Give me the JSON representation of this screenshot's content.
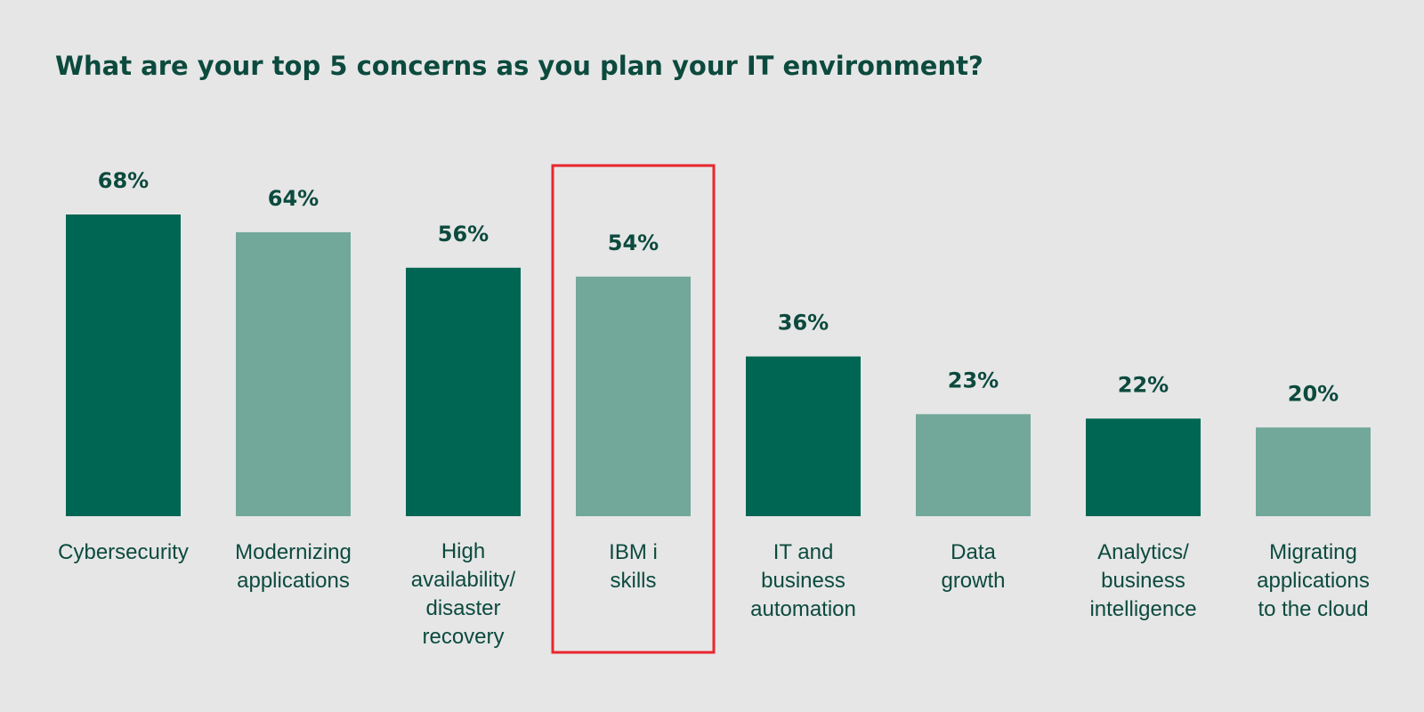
{
  "chart_data": {
    "type": "bar",
    "title": "What are your top 5 concerns as you plan your IT environment?",
    "xlabel": "",
    "ylabel": "",
    "ylim": [
      0,
      68
    ],
    "grid": false,
    "categories": [
      "Cybersecurity",
      "Modernizing applications",
      "High availability/ disaster recovery",
      "IBM i skills",
      "IT and business automation",
      "Data growth",
      "Analytics/ business intelligence",
      "Migrating applications to the cloud"
    ],
    "category_lines": [
      [
        "Cybersecurity"
      ],
      [
        "Modernizing",
        "applications"
      ],
      [
        "High",
        "availability/",
        "disaster",
        "recovery"
      ],
      [
        "IBM i",
        "skills"
      ],
      [
        "IT and",
        "business",
        "automation"
      ],
      [
        "Data",
        "growth"
      ],
      [
        "Analytics/",
        "business",
        "intelligence"
      ],
      [
        "Migrating",
        "applications",
        "to the cloud"
      ]
    ],
    "values": [
      68,
      64,
      56,
      54,
      36,
      23,
      22,
      20
    ],
    "value_labels": [
      "68%",
      "64%",
      "56%",
      "54%",
      "36%",
      "23%",
      "22%",
      "20%"
    ],
    "highlighted_category": "IBM i skills",
    "colors": {
      "background": "#e6e6e6",
      "dark_bar": "#006654",
      "light_bar": "#72a89a",
      "text": "#0c4a3e",
      "highlight_box": "#e8262d"
    }
  }
}
